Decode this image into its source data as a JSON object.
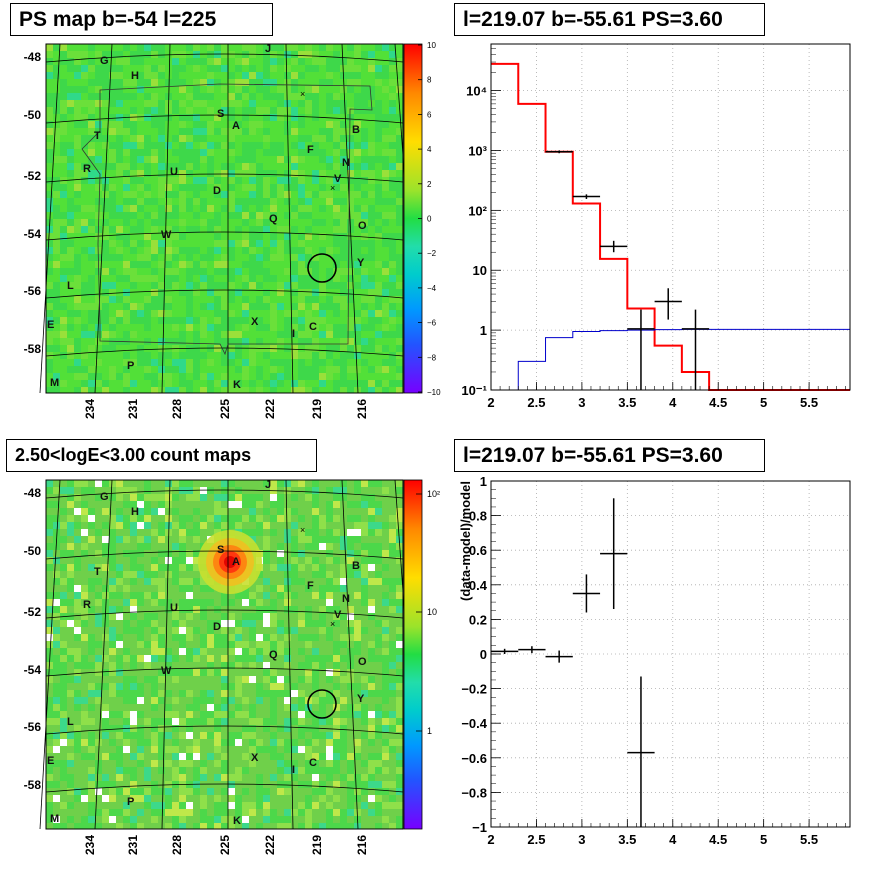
{
  "chart_data": [
    {
      "type": "heatmap",
      "title": "PS map b=-54 l=225",
      "x_ticks": [
        "234",
        "231",
        "228",
        "225",
        "222",
        "219",
        "216"
      ],
      "y_ticks": [
        "-48",
        "-50",
        "-52",
        "-54",
        "-56",
        "-58"
      ],
      "colorbar": {
        "ticks": [
          "10",
          "8",
          "6",
          "4",
          "2",
          "0",
          "−2",
          "−4",
          "−6",
          "−8",
          "−10"
        ],
        "range": [
          -10,
          10
        ],
        "scale": "linear"
      },
      "grid": true,
      "labels": [
        "G",
        "H",
        "J",
        "S",
        "A",
        "B",
        "T",
        "F",
        "N",
        "R",
        "U",
        "V",
        "D",
        "Q",
        "O",
        "W",
        "Y",
        "L",
        "E",
        "X",
        "I",
        "C",
        "P",
        "M",
        "K"
      ],
      "marker_circle": {
        "l": 218.9,
        "b": -55.2
      }
    },
    {
      "type": "line",
      "title": "l=219.07 b=-55.61 PS=3.60",
      "x_ticks": [
        "2",
        "2.5",
        "3",
        "3.5",
        "4",
        "4.5",
        "5",
        "5.5"
      ],
      "y_ticks": [
        "10⁻¹",
        "1",
        "10",
        "10²",
        "10³",
        "10⁴"
      ],
      "xlim": [
        2.0,
        5.95
      ],
      "ylim": [
        0.1,
        60000
      ],
      "yscale": "log",
      "grid": true,
      "series": [
        {
          "style": "step",
          "color": "#ff0000",
          "edges": [
            2.0,
            2.3,
            2.6,
            2.9,
            3.2,
            3.5,
            3.8,
            4.1,
            4.4,
            5.95
          ],
          "values": [
            28000,
            6000,
            950,
            130,
            15.5,
            2.3,
            0.55,
            0.2,
            0.1
          ]
        },
        {
          "style": "step",
          "color": "#0000cc",
          "edges": [
            2.0,
            2.3,
            2.6,
            2.9,
            3.2,
            3.5,
            3.8,
            4.1,
            4.4,
            5.95
          ],
          "values": [
            0.05,
            0.3,
            0.75,
            0.95,
            0.98,
            1.0,
            1.02,
            1.03,
            1.03
          ]
        },
        {
          "style": "errorbars",
          "color": "#000000",
          "points": [
            {
              "x": 2.75,
              "y": 950,
              "xerr": 0.15,
              "ylo": 900,
              "yhi": 1000
            },
            {
              "x": 3.05,
              "y": 170,
              "xerr": 0.15,
              "ylo": 155,
              "yhi": 185
            },
            {
              "x": 3.35,
              "y": 25,
              "xerr": 0.15,
              "ylo": 20,
              "yhi": 31
            },
            {
              "x": 3.65,
              "y": 1.05,
              "xerr": 0.15,
              "ylo": 0.1,
              "yhi": 2.2
            },
            {
              "x": 3.95,
              "y": 3.0,
              "xerr": 0.15,
              "ylo": 1.5,
              "yhi": 5.0
            },
            {
              "x": 4.25,
              "y": 1.05,
              "xerr": 0.15,
              "ylo": 0.1,
              "yhi": 2.2
            }
          ]
        }
      ]
    },
    {
      "type": "heatmap",
      "title": "2.50<logE<3.00 count maps",
      "x_ticks": [
        "234",
        "231",
        "228",
        "225",
        "222",
        "219",
        "216"
      ],
      "y_ticks": [
        "-48",
        "-50",
        "-52",
        "-54",
        "-56",
        "-58"
      ],
      "colorbar": {
        "ticks": [
          "10²",
          "10",
          "1"
        ],
        "scale": "log"
      },
      "grid": true,
      "labels": [
        "G",
        "H",
        "J",
        "S",
        "A",
        "B",
        "T",
        "F",
        "N",
        "R",
        "U",
        "V",
        "D",
        "Q",
        "O",
        "W",
        "Y",
        "L",
        "E",
        "X",
        "I",
        "C",
        "P",
        "M",
        "K"
      ],
      "marker_circle": {
        "l": 218.9,
        "b": -55.2
      }
    },
    {
      "type": "scatter",
      "title": "l=219.07 b=-55.61 PS=3.60",
      "ylabel": "(data-model)/model",
      "x_ticks": [
        "2",
        "2.5",
        "3",
        "3.5",
        "4",
        "4.5",
        "5",
        "5.5"
      ],
      "y_ticks": [
        "1",
        "0.8",
        "0.6",
        "0.4",
        "0.2",
        "0",
        "−0.2",
        "−0.4",
        "−0.6",
        "−0.8",
        "−1"
      ],
      "xlim": [
        2.0,
        5.95
      ],
      "ylim": [
        -1,
        1
      ],
      "grid": true,
      "series": [
        {
          "style": "errorbars",
          "color": "#000000",
          "points": [
            {
              "x": 2.15,
              "y": 0.015,
              "xerr": 0.15,
              "ylo": 0.0,
              "yhi": 0.03
            },
            {
              "x": 2.45,
              "y": 0.025,
              "xerr": 0.15,
              "ylo": 0.005,
              "yhi": 0.045
            },
            {
              "x": 2.75,
              "y": -0.015,
              "xerr": 0.15,
              "ylo": -0.05,
              "yhi": 0.02
            },
            {
              "x": 3.05,
              "y": 0.35,
              "xerr": 0.15,
              "ylo": 0.24,
              "yhi": 0.46
            },
            {
              "x": 3.35,
              "y": 0.58,
              "xerr": 0.15,
              "ylo": 0.26,
              "yhi": 0.9
            },
            {
              "x": 3.65,
              "y": -0.57,
              "xerr": 0.15,
              "ylo": -1.0,
              "yhi": -0.13
            }
          ]
        }
      ]
    }
  ]
}
